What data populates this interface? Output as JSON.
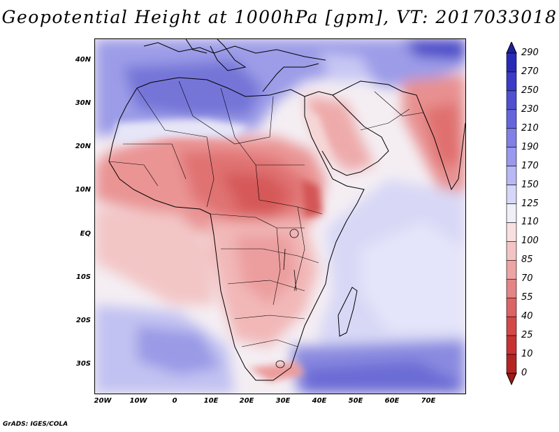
{
  "title": "Geopotential Height at 1000hPa [gpm], VT: 2017033018",
  "footer": "GrADS: IGES/COLA",
  "lat_labels": [
    "40N",
    "30N",
    "20N",
    "10N",
    "EQ",
    "10S",
    "20S",
    "30S"
  ],
  "lon_labels": [
    "20W",
    "10W",
    "0",
    "10E",
    "20E",
    "30E",
    "40E",
    "50E",
    "60E",
    "70E"
  ],
  "colorbar": {
    "levels": [
      "290",
      "270",
      "250",
      "230",
      "210",
      "190",
      "170",
      "150",
      "125",
      "110",
      "100",
      "85",
      "70",
      "55",
      "40",
      "25",
      "10",
      "0"
    ],
    "colors": [
      "#1f1fa0",
      "#2a2ab8",
      "#3b3bc8",
      "#5050d0",
      "#6666dc",
      "#8080e6",
      "#9999ee",
      "#b8b8f4",
      "#d6d6f8",
      "#f0eef8",
      "#f8e0e0",
      "#f4c4c4",
      "#eca4a4",
      "#e48484",
      "#dc6464",
      "#d44848",
      "#c83232",
      "#b42424",
      "#a01818"
    ]
  }
}
